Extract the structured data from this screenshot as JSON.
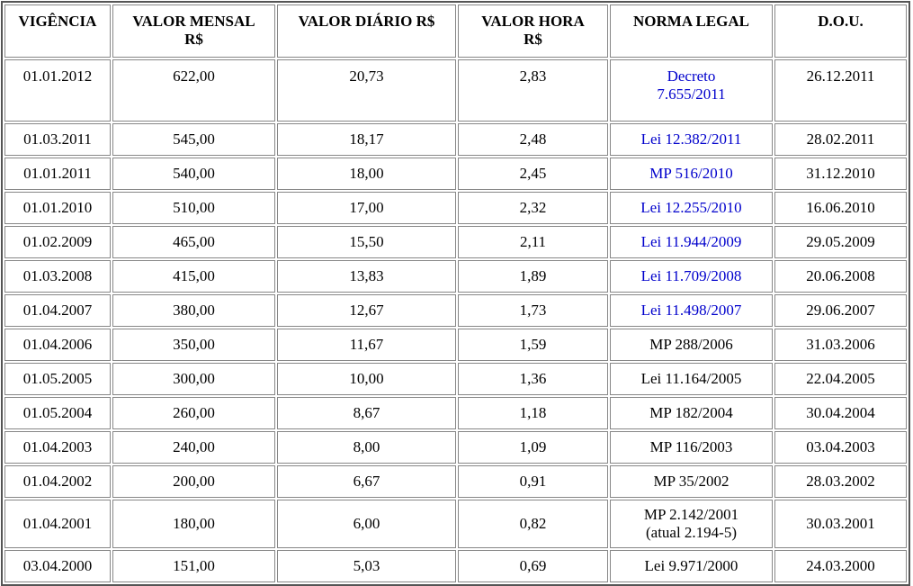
{
  "colors": {
    "link_blue": "#0000cc",
    "text_black": "#000000",
    "cell_border_gray": "#878787",
    "outer_border_gray": "#555555",
    "background": "#ffffff"
  },
  "table": {
    "headers": [
      "VIGÊNCIA",
      "VALOR MENSAL\nR$",
      "VALOR DIÁRIO R$",
      "VALOR HORA\nR$",
      "NORMA LEGAL",
      "D.O.U."
    ],
    "rows": [
      {
        "vigencia": "01.01.2012",
        "valor_mensal": "622,00",
        "valor_diario": "20,73",
        "valor_hora": "2,83",
        "norma_legal": "Decreto\n7.655/2011",
        "norma_is_link": true,
        "dou": "26.12.2011",
        "row_style": "tall-top"
      },
      {
        "vigencia": "01.03.2011",
        "valor_mensal": "545,00",
        "valor_diario": "18,17",
        "valor_hora": "2,48",
        "norma_legal": "Lei 12.382/2011",
        "norma_is_link": true,
        "dou": "28.02.2011",
        "row_style": "normal"
      },
      {
        "vigencia": "01.01.2011",
        "valor_mensal": "540,00",
        "valor_diario": "18,00",
        "valor_hora": "2,45",
        "norma_legal": "MP 516/2010",
        "norma_is_link": true,
        "dou": "31.12.2010",
        "row_style": "normal"
      },
      {
        "vigencia": "01.01.2010",
        "valor_mensal": "510,00",
        "valor_diario": "17,00",
        "valor_hora": "2,32",
        "norma_legal": "Lei 12.255/2010",
        "norma_is_link": true,
        "dou": "16.06.2010",
        "row_style": "normal"
      },
      {
        "vigencia": "01.02.2009",
        "valor_mensal": "465,00",
        "valor_diario": "15,50",
        "valor_hora": "2,11",
        "norma_legal": "Lei 11.944/2009",
        "norma_is_link": true,
        "dou": "29.05.2009",
        "row_style": "normal"
      },
      {
        "vigencia": "01.03.2008",
        "valor_mensal": "415,00",
        "valor_diario": "13,83",
        "valor_hora": "1,89",
        "norma_legal": "Lei 11.709/2008",
        "norma_is_link": true,
        "dou": "20.06.2008",
        "row_style": "normal"
      },
      {
        "vigencia": "01.04.2007",
        "valor_mensal": "380,00",
        "valor_diario": "12,67",
        "valor_hora": "1,73",
        "norma_legal": "Lei 11.498/2007",
        "norma_is_link": true,
        "dou": "29.06.2007",
        "row_style": "normal"
      },
      {
        "vigencia": "01.04.2006",
        "valor_mensal": "350,00",
        "valor_diario": "11,67",
        "valor_hora": "1,59",
        "norma_legal": "MP 288/2006",
        "norma_is_link": false,
        "dou": "31.03.2006",
        "row_style": "normal"
      },
      {
        "vigencia": "01.05.2005",
        "valor_mensal": "300,00",
        "valor_diario": "10,00",
        "valor_hora": "1,36",
        "norma_legal": "Lei 11.164/2005",
        "norma_is_link": false,
        "dou": "22.04.2005",
        "row_style": "normal"
      },
      {
        "vigencia": "01.05.2004",
        "valor_mensal": "260,00",
        "valor_diario": "8,67",
        "valor_hora": "1,18",
        "norma_legal": "MP 182/2004",
        "norma_is_link": false,
        "dou": "30.04.2004",
        "row_style": "normal"
      },
      {
        "vigencia": "01.04.2003",
        "valor_mensal": "240,00",
        "valor_diario": "8,00",
        "valor_hora": "1,09",
        "norma_legal": "MP 116/2003",
        "norma_is_link": false,
        "dou": "03.04.2003",
        "row_style": "normal"
      },
      {
        "vigencia": "01.04.2002",
        "valor_mensal": "200,00",
        "valor_diario": "6,67",
        "valor_hora": "0,91",
        "norma_legal": "MP 35/2002",
        "norma_is_link": false,
        "dou": "28.03.2002",
        "row_style": "normal"
      },
      {
        "vigencia": "01.04.2001",
        "valor_mensal": "180,00",
        "valor_diario": "6,00",
        "valor_hora": "0,82",
        "norma_legal": "MP 2.142/2001\n(atual 2.194-5)",
        "norma_is_link": false,
        "dou": "30.03.2001",
        "row_style": "tall"
      },
      {
        "vigencia": "03.04.2000",
        "valor_mensal": "151,00",
        "valor_diario": "5,03",
        "valor_hora": "0,69",
        "norma_legal": "Lei 9.971/2000",
        "norma_is_link": false,
        "dou": "24.03.2000",
        "row_style": "normal"
      }
    ]
  }
}
